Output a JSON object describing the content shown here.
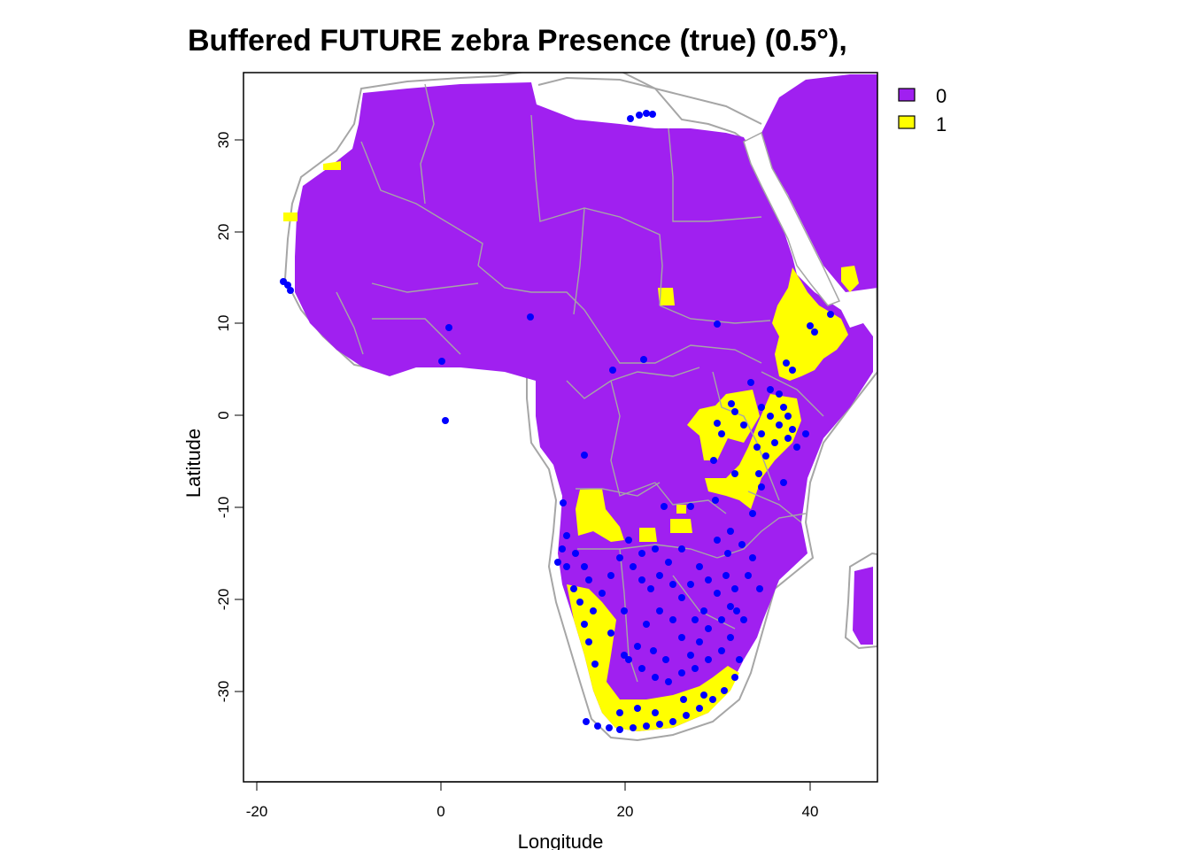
{
  "title": "Buffered FUTURE zebra Presence (true) (0.5°),",
  "x_axis": {
    "label": "Longitude",
    "range": [
      -21.5,
      47
    ],
    "ticks": [
      {
        "value": -20,
        "label": "-20"
      },
      {
        "value": 0,
        "label": "0"
      },
      {
        "value": 20,
        "label": "20"
      },
      {
        "value": 40,
        "label": "40"
      }
    ]
  },
  "y_axis": {
    "label": "Latitude",
    "range": [
      -40,
      37
    ],
    "ticks": [
      {
        "value": 30,
        "label": "30"
      },
      {
        "value": 20,
        "label": "20"
      },
      {
        "value": 10,
        "label": "10"
      },
      {
        "value": 0,
        "label": "0"
      },
      {
        "value": -10,
        "label": "-10"
      },
      {
        "value": -20,
        "label": "-20"
      },
      {
        "value": -30,
        "label": "-30"
      }
    ]
  },
  "legend": {
    "placement": "top-right, outside plot",
    "items": [
      {
        "label": "0",
        "color": "#A020F0"
      },
      {
        "label": "1",
        "color": "#FFFF00"
      }
    ]
  },
  "colors": {
    "absence": "#A020F0",
    "presence": "#FFFF00",
    "occurrence_points": "#0000FF",
    "borders": "#A6A6A6"
  }
}
